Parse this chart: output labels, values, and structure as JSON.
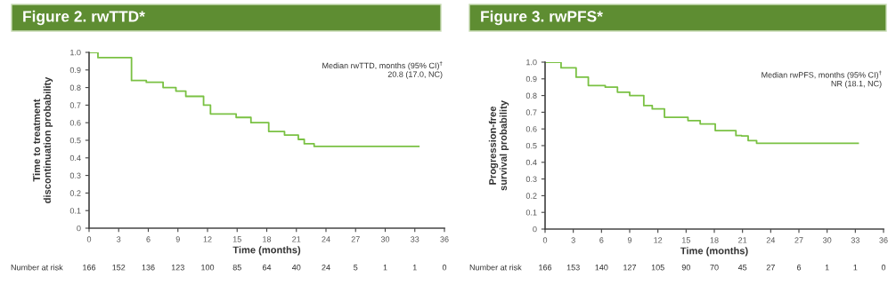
{
  "chart_data": [
    {
      "type": "step",
      "title": "Figure 2. rwTTD*",
      "xlabel": "Time (months)",
      "ylabel": "Time to treatment\ndiscontinuation probability",
      "x": [
        0,
        0.9,
        2.3,
        4.3,
        5.8,
        7.5,
        8.8,
        9.8,
        11.6,
        12.3,
        14.9,
        16.4,
        18.2,
        19.8,
        21.2,
        21.8,
        22.8,
        33.4
      ],
      "series": [
        {
          "color": "#7ac143",
          "values": [
            1.0,
            0.97,
            0.97,
            0.84,
            0.83,
            0.8,
            0.78,
            0.75,
            0.7,
            0.65,
            0.63,
            0.6,
            0.55,
            0.53,
            0.505,
            0.48,
            0.465,
            0.465
          ]
        }
      ],
      "xlim": [
        0,
        36
      ],
      "xticks": [
        0,
        3,
        6,
        9,
        12,
        15,
        18,
        21,
        24,
        27,
        30,
        33,
        36
      ],
      "ylim": [
        0,
        1
      ],
      "yticks": [
        {
          "value": 0,
          "label": "0"
        },
        {
          "value": 0.1,
          "label": "0.1"
        },
        {
          "value": 0.2,
          "label": "0.2"
        },
        {
          "value": 0.3,
          "label": "0.3"
        },
        {
          "value": 0.4,
          "label": "0.4"
        },
        {
          "value": 0.5,
          "label": "0.5"
        },
        {
          "value": 0.6,
          "label": "0.6"
        },
        {
          "value": 0.7,
          "label": "0.7"
        },
        {
          "value": 0.8,
          "label": "0.8"
        },
        {
          "value": 0.9,
          "label": "0.9"
        },
        {
          "value": 1.0,
          "label": "1.0"
        }
      ],
      "grid": false,
      "legend": false,
      "annotations": [
        "Median rwTTD, months (95% CI)$^{†}$\n20.8 (17.0, NC)",
        "Number at risk",
        "166",
        "152",
        "136",
        "123",
        "100",
        "85",
        "64",
        "40",
        "24",
        "5",
        "1",
        "1",
        "0"
      ]
    },
    {
      "type": "step",
      "title": "Figure 3. rwPFS*",
      "xlabel": "Time (months)",
      "ylabel": "Progression-free\nsurvival probability",
      "x": [
        0,
        1.7,
        3.3,
        4.6,
        6.4,
        7.7,
        9.0,
        10.5,
        11.4,
        12.7,
        15.2,
        16.5,
        18.1,
        20.3,
        20.9,
        21.6,
        22.5,
        33.3
      ],
      "series": [
        {
          "color": "#7ac143",
          "values": [
            1.0,
            0.966,
            0.91,
            0.86,
            0.85,
            0.82,
            0.8,
            0.74,
            0.72,
            0.67,
            0.65,
            0.63,
            0.59,
            0.56,
            0.558,
            0.53,
            0.514,
            0.514
          ]
        }
      ],
      "xlim": [
        0,
        36
      ],
      "xticks": [
        0,
        3,
        6,
        9,
        12,
        15,
        18,
        21,
        24,
        27,
        30,
        33,
        36
      ],
      "ylim": [
        0,
        1
      ],
      "yticks": [
        {
          "value": 0,
          "label": "0"
        },
        {
          "value": 0.1,
          "label": "0.1"
        },
        {
          "value": 0.2,
          "label": "0.2"
        },
        {
          "value": 0.3,
          "label": "0.3"
        },
        {
          "value": 0.4,
          "label": "0.4"
        },
        {
          "value": 0.5,
          "label": "0.5"
        },
        {
          "value": 0.6,
          "label": "0.6"
        },
        {
          "value": 0.7,
          "label": "0.7"
        },
        {
          "value": 0.8,
          "label": "0.8"
        },
        {
          "value": 0.9,
          "label": "0.9"
        },
        {
          "value": 1.0,
          "label": "1.0"
        }
      ],
      "grid": false,
      "legend": false,
      "annotations": [
        "Median rwPFS, months (95% CI)$^{†}$\nNR (18.1, NC)",
        "Number at risk",
        "166",
        "153",
        "140",
        "127",
        "105",
        "90",
        "70",
        "45",
        "27",
        "6",
        "1",
        "1",
        "0"
      ]
    }
  ]
}
